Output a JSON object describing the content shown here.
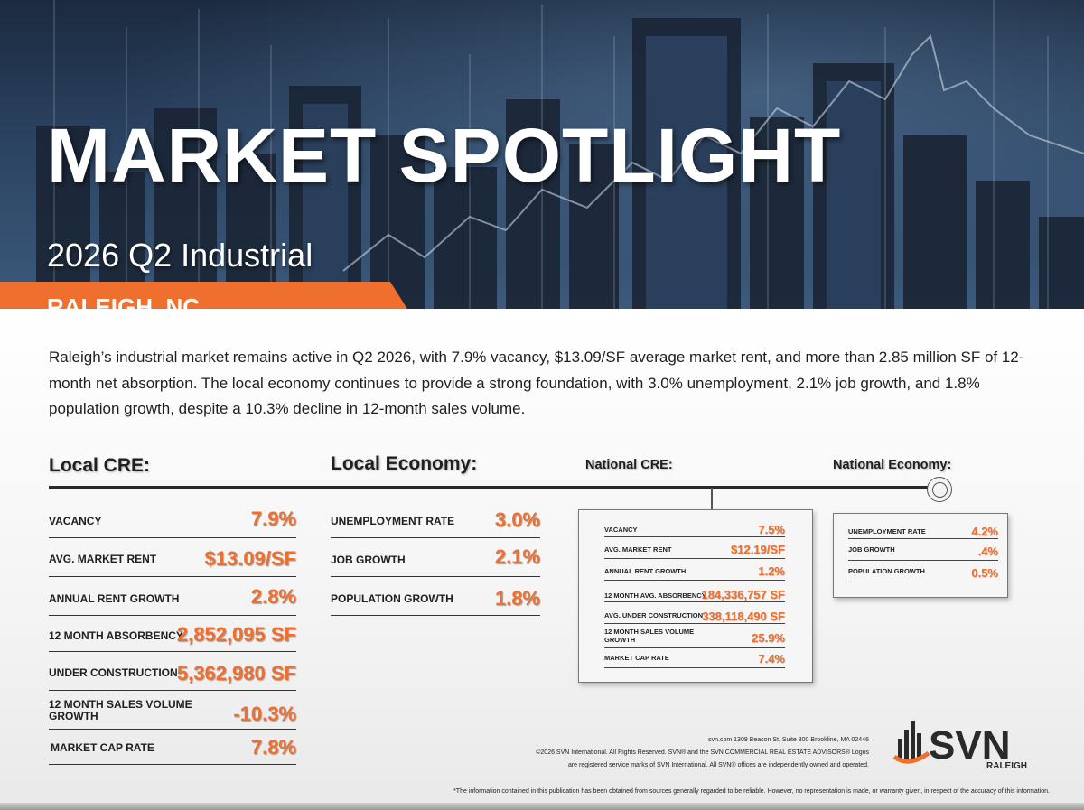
{
  "hero": {
    "title": "MARKET SPOTLIGHT",
    "subtitle": "2026 Q2 Industrial",
    "location": "RALEIGH, NC"
  },
  "intro": "Raleigh’s industrial market remains active in Q2 2026, with 7.9% vacancy, $13.09/SF average market rent, and more than 2.85 million SF of 12-month net absorption. The local economy continues to provide a strong foundation, with 3.0% unemployment, 2.1% job growth, and 1.8% population growth, despite a 10.3% decline in 12-month sales volume.",
  "sections": {
    "local_cre": "Local CRE:",
    "local_economy": "Local Economy:",
    "national_cre": "National CRE:",
    "national_economy": "National Economy:"
  },
  "local_cre": [
    {
      "label": "VACANCY",
      "value": "7.9%"
    },
    {
      "label": "AVG. MARKET RENT",
      "value": "$13.09/SF"
    },
    {
      "label": "ANNUAL RENT GROWTH",
      "value": "2.8%"
    },
    {
      "label": "12 MONTH ABSORBENCY",
      "value": "2,852,095 SF"
    },
    {
      "label": "UNDER CONSTRUCTION",
      "value": "5,362,980 SF"
    },
    {
      "label": "12 MONTH SALES VOLUME GROWTH",
      "value": "-10.3%"
    },
    {
      "label": "MARKET CAP RATE",
      "value": "7.8%"
    }
  ],
  "local_economy": [
    {
      "label": "UNEMPLOYMENT RATE",
      "value": "3.0%"
    },
    {
      "label": "JOB GROWTH",
      "value": "2.1%"
    },
    {
      "label": "POPULATION GROWTH",
      "value": "1.8%"
    }
  ],
  "national_cre": [
    {
      "label": "VACANCY",
      "value": "7.5%"
    },
    {
      "label": "AVG. MARKET RENT",
      "value": "$12.19/SF"
    },
    {
      "label": "ANNUAL RENT GROWTH",
      "value": "1.2%"
    },
    {
      "label": "12 MONTH AVG. ABSORBENCY",
      "value": "184,336,757 SF"
    },
    {
      "label": "AVG. UNDER CONSTRUCTION",
      "value": "338,118,490 SF"
    },
    {
      "label": "12 MONTH SALES VOLUME GROWTH",
      "value": "25.9%"
    },
    {
      "label": "MARKET CAP RATE",
      "value": "7.4%"
    }
  ],
  "national_economy": [
    {
      "label": "UNEMPLOYMENT RATE",
      "value": "4.2%"
    },
    {
      "label": "JOB GROWTH",
      "value": ".4%"
    },
    {
      "label": "POPULATION GROWTH",
      "value": "0.5%"
    }
  ],
  "footer": {
    "line1": "svn.com 1309 Beacon St, Suite 300 Brookline, MA 02446",
    "line2": "©2026 SVN International. All Rights Reserved. SVN® and the SVN COMMERCIAL REAL ESTATE ADVISORS® Logos",
    "line3": "are registered service marks of SVN International. All SVN® offices are independently owned and operated.",
    "disclaimer": "*The information contained in this publication has been obtained from sources generally regarded to be reliable. However, no representation is made, or warranty given, in respect of the accuracy of this information."
  },
  "logo": {
    "text": "SVN",
    "city": "RALEIGH",
    "accent": "#ef6f2e",
    "dark": "#2a2a2a"
  },
  "colors": {
    "accent": "#ef6f2e",
    "hero_dark": "#1b2a40"
  }
}
